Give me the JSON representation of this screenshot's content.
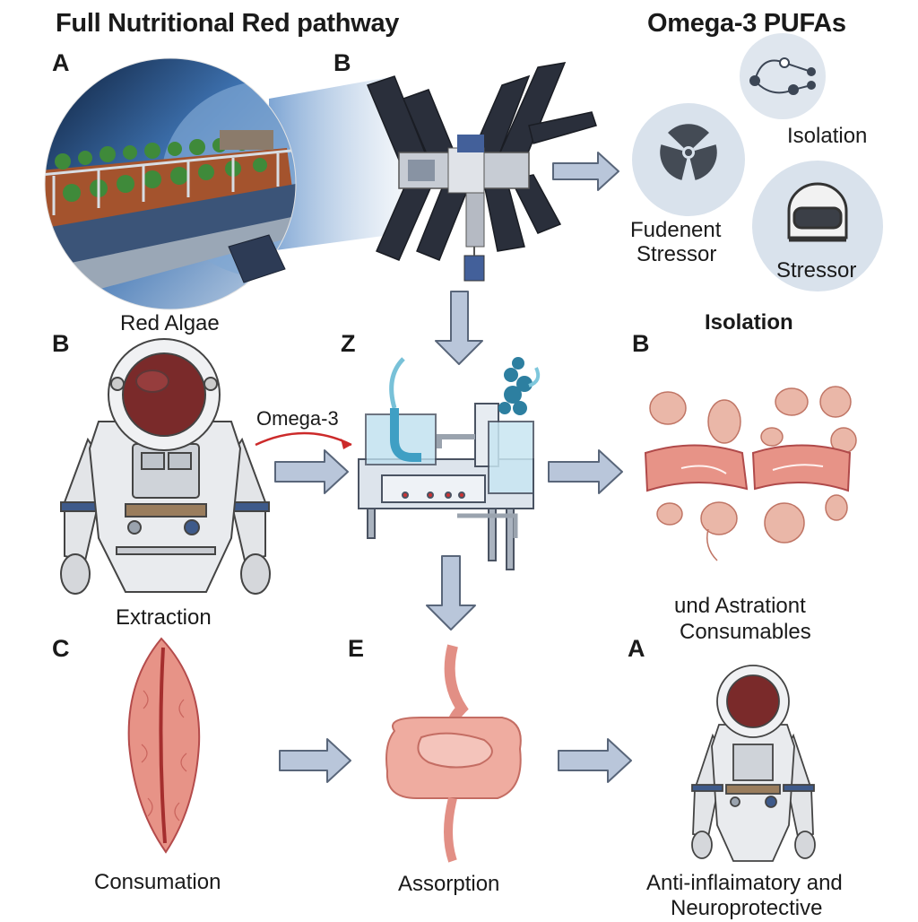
{
  "header": {
    "title_left": "Full Nutritional Red pathway",
    "title_right": "Omega-3 PUFAs"
  },
  "panels": {
    "a_top": "A",
    "b_top": "B",
    "b_mid_left": "B",
    "z_mid": "Z",
    "b_mid_right": "B",
    "c_bottom": "C",
    "e_bottom": "E",
    "a_bottom": "A"
  },
  "captions": {
    "red_algae": "Red Algae",
    "isolation_top": "Isolation",
    "fudenent_line1": "Fudenent",
    "fudenent_line2": "Stressor",
    "stressor": "Stressor",
    "isolation_mid": "Isolation",
    "omega3_arrow": "Omega-3",
    "extraction": "Extraction",
    "consumables_line1": "und Astrationt",
    "consumables_line2": "Consumables",
    "consumation": "Consumation",
    "assorption": "Assorption",
    "outcome_line1": "Anti-inflaimatory and",
    "outcome_line2": "Neuroprotective"
  },
  "icons": {
    "radiation": "radiation-icon",
    "helmet": "helmet-icon",
    "network": "network-icon"
  },
  "colors": {
    "arrow_fill": "#b9c6da",
    "arrow_stroke": "#59667a",
    "circle_fill": "#d9e2ec",
    "tissue": "#e7928a",
    "red_arrow": "#cc2a2a"
  }
}
